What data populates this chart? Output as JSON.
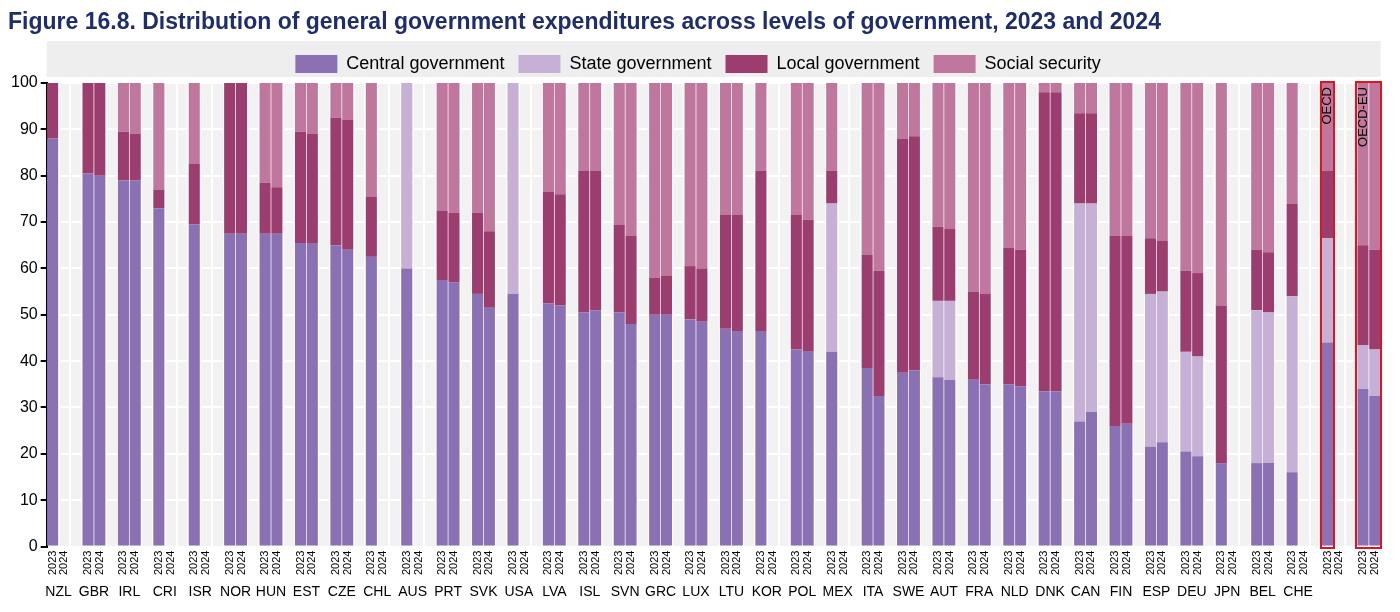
{
  "chart_data": {
    "type": "bar",
    "stacked": true,
    "title": "Figure 16.8. Distribution of general government expenditures across levels of government, 2023 and 2024",
    "categories": [
      "2023",
      "2024",
      null,
      "2023",
      "2024",
      null,
      "2023",
      "2024",
      null,
      "2023",
      "2024",
      null,
      "2023",
      "2024",
      null,
      "2023",
      "2024",
      null,
      "2023",
      "2024",
      null,
      "2023",
      "2024",
      null,
      "2023",
      "2024",
      null,
      "2023",
      "2024",
      null,
      "2023",
      "2024",
      null,
      "2023",
      "2024",
      null,
      "2023",
      "2024",
      null,
      "2023",
      "2024",
      null,
      "2023",
      "2024",
      null,
      "2023",
      "2024",
      null,
      "2023",
      "2024",
      null,
      "2023",
      "2024",
      null,
      "2023",
      "2024",
      null,
      "2023",
      "2024",
      null,
      "2023",
      "2024",
      null,
      "2023",
      "2024",
      null,
      "2023",
      "2024",
      null,
      "2023",
      "2024",
      null,
      "2023",
      "2024",
      null,
      "2023",
      "2024",
      null,
      "2023",
      "2024",
      null,
      "2023",
      "2024",
      null,
      "2023",
      "2024",
      null,
      "2023",
      "2024",
      null,
      "2023",
      "2024",
      null,
      "2023",
      "2024",
      null,
      "2023",
      "2024",
      null,
      "2023",
      "2024",
      null,
      "2023",
      "2024",
      null,
      "2023",
      "2024",
      null,
      "2023",
      "2024",
      null,
      "2023",
      "2024"
    ],
    "series": [
      {
        "name": "Central government",
        "color": "#8a71b4",
        "values": [
          88,
          null,
          null,
          80.5,
          80,
          null,
          79,
          79,
          null,
          73,
          null,
          null,
          69.5,
          null,
          null,
          67.5,
          67.5,
          null,
          67.5,
          67.5,
          null,
          65.5,
          65.5,
          null,
          65,
          64,
          null,
          62.5,
          null,
          null,
          60,
          null,
          null,
          57.5,
          57,
          null,
          54.5,
          51.5,
          null,
          54.5,
          null,
          null,
          52.5,
          52,
          null,
          50.5,
          51,
          null,
          50.5,
          48,
          null,
          50,
          50,
          null,
          49,
          48.5,
          null,
          47,
          46.5,
          null,
          46.5,
          null,
          null,
          42.5,
          42,
          null,
          42,
          null,
          null,
          38.5,
          32.5,
          null,
          37.5,
          38,
          null,
          36.5,
          36,
          null,
          36,
          35,
          null,
          35,
          34.5,
          null,
          33.5,
          33.5,
          null,
          27,
          29,
          null,
          26,
          26.5,
          null,
          21.5,
          22.5,
          null,
          20.5,
          19.5,
          null,
          18,
          null,
          null,
          18,
          18,
          null,
          16,
          null,
          null,
          44,
          null,
          null,
          34,
          32.5
        ]
      },
      {
        "name": "State government",
        "color": "#c7b0d6",
        "values": [
          0,
          null,
          null,
          0,
          0,
          null,
          0,
          0,
          null,
          0,
          null,
          null,
          0,
          null,
          null,
          0,
          0,
          null,
          0,
          0,
          null,
          0,
          0,
          null,
          0,
          0,
          null,
          0,
          null,
          null,
          40,
          null,
          null,
          0,
          0,
          null,
          0,
          0,
          null,
          45.5,
          null,
          null,
          0,
          0,
          null,
          0,
          0,
          null,
          0,
          0,
          null,
          0,
          0,
          null,
          0,
          0,
          null,
          0,
          0,
          null,
          0,
          null,
          null,
          0,
          0,
          null,
          32,
          null,
          null,
          0,
          0,
          null,
          0,
          0,
          null,
          16.5,
          17,
          null,
          0,
          0,
          null,
          0,
          0,
          null,
          0,
          0,
          null,
          47,
          45,
          null,
          0,
          0,
          null,
          33,
          32.5,
          null,
          21.5,
          21.5,
          null,
          0,
          null,
          null,
          33,
          32.5,
          null,
          38,
          null,
          null,
          22.5,
          null,
          null,
          9.5,
          10
        ]
      },
      {
        "name": "Local government",
        "color": "#9b3d6f",
        "values": [
          12,
          null,
          null,
          19.5,
          20,
          null,
          10.5,
          10,
          null,
          4,
          null,
          null,
          13,
          null,
          null,
          32.5,
          32.5,
          null,
          11,
          10,
          null,
          24,
          23.5,
          null,
          27.5,
          28,
          null,
          13,
          null,
          null,
          0,
          null,
          null,
          15,
          15,
          null,
          17.5,
          16.5,
          null,
          0,
          null,
          null,
          24,
          24,
          null,
          30.5,
          30,
          null,
          19,
          19,
          null,
          8,
          8.5,
          null,
          11.5,
          11.5,
          null,
          24.5,
          25,
          null,
          34.5,
          null,
          null,
          29,
          28.5,
          null,
          7,
          null,
          null,
          24.5,
          27,
          null,
          50.5,
          50.5,
          null,
          16,
          15.5,
          null,
          19,
          19.5,
          null,
          29.5,
          29.5,
          null,
          64.5,
          64.5,
          null,
          19.5,
          19.5,
          null,
          41,
          40.5,
          null,
          12,
          11,
          null,
          17.5,
          18,
          null,
          34,
          null,
          null,
          13,
          13,
          null,
          20,
          null,
          null,
          14.5,
          null,
          null,
          21.5,
          21.5
        ]
      },
      {
        "name": "Social security",
        "color": "#c0779d",
        "values": [
          0,
          null,
          null,
          0,
          0,
          null,
          10.5,
          11,
          null,
          23,
          null,
          null,
          17.5,
          null,
          null,
          0,
          0,
          null,
          21.5,
          22.5,
          null,
          10.5,
          11,
          null,
          7.5,
          8,
          null,
          24.5,
          null,
          null,
          0,
          null,
          null,
          27.5,
          28,
          null,
          28,
          32,
          null,
          0,
          null,
          null,
          23.5,
          24,
          null,
          19,
          19,
          null,
          30.5,
          33,
          null,
          42,
          41.5,
          null,
          39.5,
          40,
          null,
          28.5,
          28.5,
          null,
          19,
          null,
          null,
          28.5,
          29.5,
          null,
          19,
          null,
          null,
          37,
          40.5,
          null,
          12,
          11.5,
          null,
          31,
          31.5,
          null,
          45,
          45.5,
          null,
          35.5,
          36,
          null,
          2,
          2,
          null,
          6.5,
          6.5,
          null,
          33,
          33,
          null,
          33.5,
          34,
          null,
          40.5,
          41,
          null,
          48,
          null,
          null,
          36,
          36.5,
          null,
          26,
          null,
          null,
          19,
          null,
          null,
          35,
          36
        ]
      }
    ],
    "ylim": [
      0,
      100
    ],
    "yticks": [
      0,
      10,
      20,
      30,
      40,
      50,
      60,
      70,
      80,
      90,
      100
    ],
    "grid": true,
    "legend": "top",
    "annotations": [
      "NZL",
      "GBR",
      "IRL",
      "CRI",
      "ISR",
      "NOR",
      "HUN",
      "EST",
      "CZE",
      "CHL",
      "AUS",
      "PRT",
      "SVK",
      "USA",
      "LVA",
      "ISL",
      "SVN",
      "GRC",
      "LUX",
      "LTU",
      "KOR",
      "POL",
      "MEX",
      "ITA",
      "SWE",
      "AUT",
      "FRA",
      "NLD",
      "DNK",
      "CAN",
      "FIN",
      "ESP",
      "DEU",
      "JPN",
      "BEL",
      "CHE",
      {
        "text": "OECD",
        "y": 100
      },
      {
        "text": "OECD-EU",
        "y": 100
      }
    ]
  }
}
